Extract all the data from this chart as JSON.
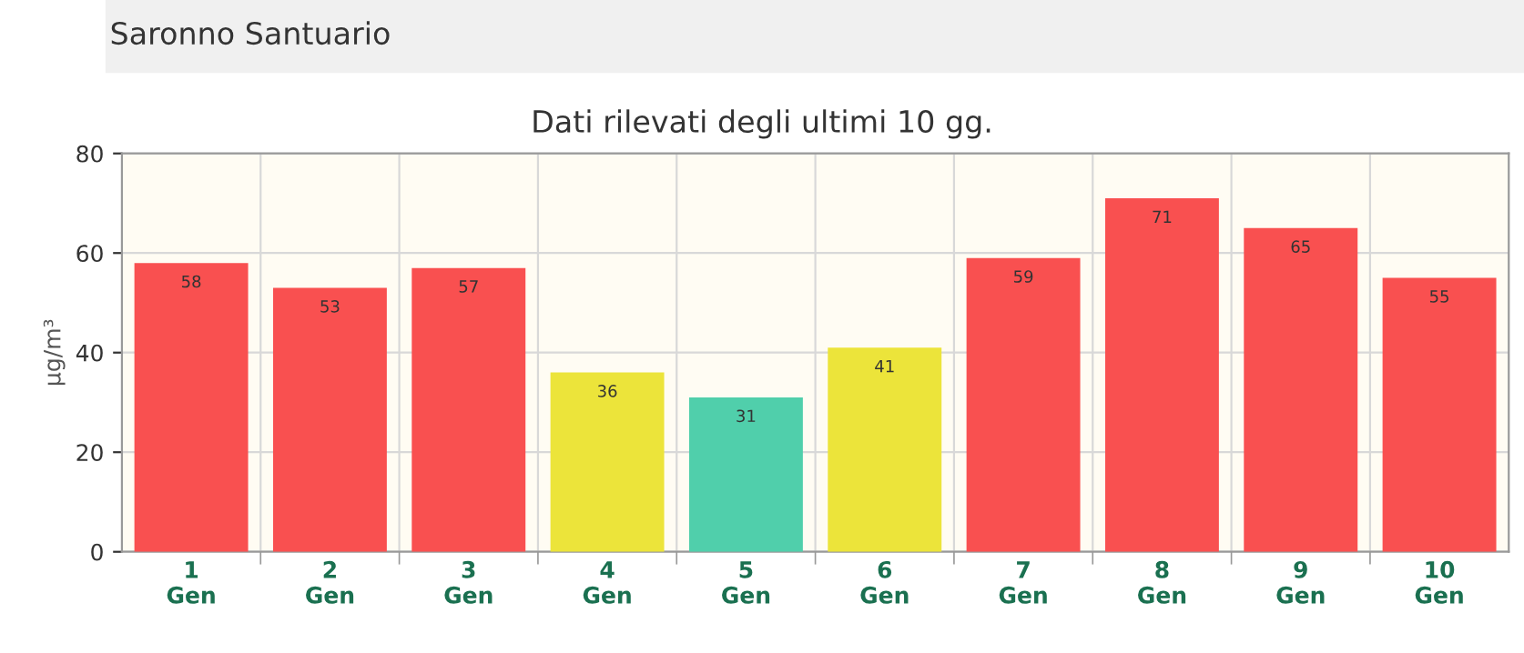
{
  "chart_data": {
    "type": "bar",
    "title": "Dati rilevati degli ultimi 10 gg.",
    "subtitle": "Saronno Santuario",
    "ylabel": "µg/m³",
    "categories": [
      "1\nGen",
      "2\nGen",
      "3\nGen",
      "4\nGen",
      "5\nGen",
      "6\nGen",
      "7\nGen",
      "8\nGen",
      "9\nGen",
      "10\nGen"
    ],
    "values": [
      58,
      53,
      57,
      36,
      31,
      41,
      59,
      71,
      65,
      55
    ],
    "colors": [
      "#f95050",
      "#f95050",
      "#f95050",
      "#ece43a",
      "#50cfab",
      "#ece43a",
      "#f95050",
      "#f95050",
      "#f95050",
      "#f95050"
    ],
    "ylim": [
      0,
      80
    ],
    "yticks": [
      0,
      20,
      40,
      60,
      80
    ],
    "grid": true,
    "data_labels": true
  }
}
